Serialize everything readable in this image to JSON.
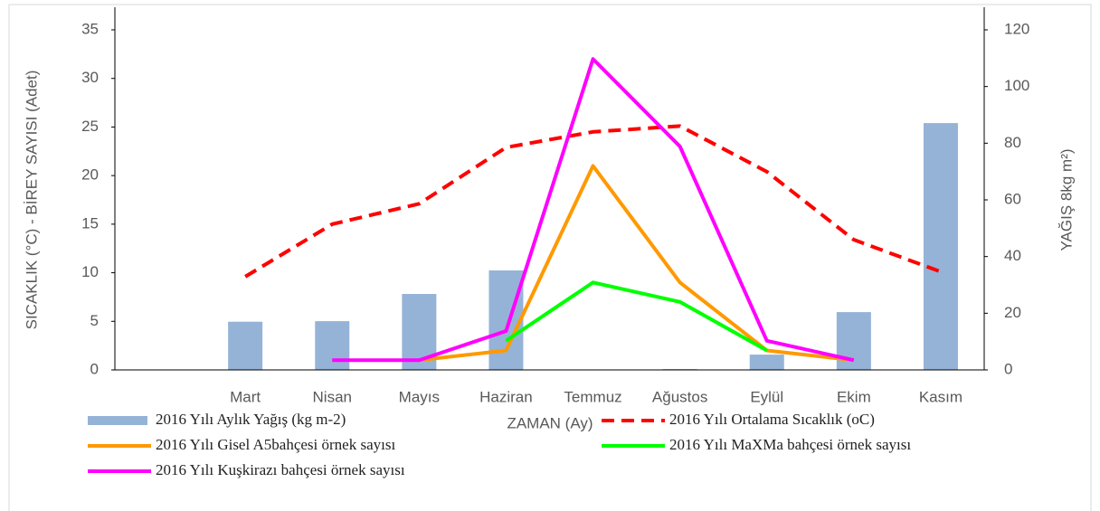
{
  "chart_data": {
    "type": "combo",
    "categories": [
      null,
      "Mart",
      "Nisan",
      "Mayıs",
      "Haziran",
      "Temmuz",
      "Ağustos",
      "Eylül",
      "Ekim",
      "Kasım"
    ],
    "x_label": "ZAMAN (Ay)",
    "y_label": "SICAKLIK (°C) - BİREY SAYISI (Adet)",
    "y2_label": "YAĞIŞ 8kg m²)",
    "ylim": [
      0,
      35
    ],
    "yticks": [
      0,
      5,
      10,
      15,
      20,
      25,
      30,
      35
    ],
    "y2lim": [
      0,
      120
    ],
    "y2ticks": [
      0,
      20,
      40,
      60,
      80,
      100,
      120
    ],
    "series": [
      {
        "name": "2016 Yılı Aylık Yağış (kg m-2)",
        "type": "bar",
        "axis": "y2",
        "color": "#95b3d7",
        "values": [
          null,
          17,
          17.2,
          26.8,
          35.1,
          null,
          0.3,
          5.4,
          20.4,
          87.1
        ]
      },
      {
        "name": "2016 Yılı Ortalama Sıcaklık (oC)",
        "type": "line",
        "dashed": true,
        "color": "#ff0000",
        "values": [
          null,
          9.6,
          15.0,
          17.1,
          22.9,
          24.5,
          25.1,
          20.4,
          13.4,
          10.1
        ]
      },
      {
        "name": "2016 Yılı Gisel A5bahçesi örnek sayısı",
        "type": "line",
        "color": "#ff9900",
        "values": [
          null,
          null,
          null,
          1,
          2,
          21,
          9,
          2,
          1,
          null
        ]
      },
      {
        "name": "2016 Yılı MaXMa bahçesi örnek sayısı",
        "type": "line",
        "color": "#00ff00",
        "values": [
          null,
          null,
          null,
          null,
          3,
          9,
          7,
          2,
          null,
          null
        ]
      },
      {
        "name": "2016 Yılı Kuşkirazı bahçesi örnek sayısı",
        "type": "line",
        "color": "#ff00ff",
        "values": [
          null,
          null,
          1,
          1,
          4,
          32,
          23,
          3,
          1,
          null
        ]
      }
    ]
  }
}
